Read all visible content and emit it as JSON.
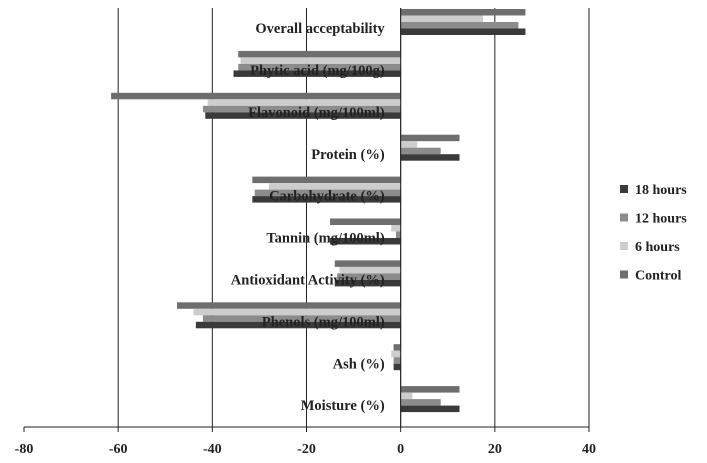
{
  "chart_data": {
    "type": "bar",
    "orientation": "horizontal",
    "categories": [
      "Overall acceptability",
      "Phytic acid (mg/100g)",
      "Flavonoid (mg/100ml)",
      "Protein (%)",
      "Carbohydrate (%)",
      "Tannin (mg/100ml)",
      "Antioxidant Activity (%)",
      "Phenols (mg/100ml)",
      "Ash  (%)",
      "Moisture (%)"
    ],
    "series": [
      {
        "name": "Control",
        "values": [
          26.5,
          -34.5,
          -61.5,
          12.5,
          -31.5,
          -15.0,
          -14.0,
          -47.5,
          -1.5,
          12.5
        ]
      },
      {
        "name": "6 hours",
        "values": [
          17.5,
          -34.0,
          -41.0,
          3.5,
          -28.0,
          -2.0,
          -13.0,
          -44.0,
          -2.0,
          2.5
        ]
      },
      {
        "name": "12 hours",
        "values": [
          25.0,
          -34.5,
          -42.0,
          8.5,
          -31.0,
          -1.0,
          -13.5,
          -42.0,
          -1.5,
          8.5
        ]
      },
      {
        "name": "18 hours",
        "values": [
          26.5,
          -35.5,
          -41.5,
          12.5,
          -31.5,
          -15.0,
          -14.0,
          -43.5,
          -1.5,
          12.5
        ]
      }
    ],
    "series_colors": {
      "Control": "#6e6e6e",
      "6 hours": "#cdcdcd",
      "12 hours": "#8c8c8c",
      "18 hours": "#3a3a3a"
    },
    "xlim": [
      -80,
      40
    ],
    "xticks": [
      -80,
      -60,
      -40,
      -20,
      0,
      20,
      40
    ],
    "xtick_labels": [
      "-80",
      "-60",
      "-40",
      "-20",
      "0",
      "20",
      "40"
    ],
    "grid": "vertical",
    "legend": {
      "position": "right",
      "entries": [
        "18 hours",
        "12 hours",
        "6 hours",
        "Control"
      ]
    },
    "title": "",
    "xlabel": "",
    "ylabel": ""
  }
}
